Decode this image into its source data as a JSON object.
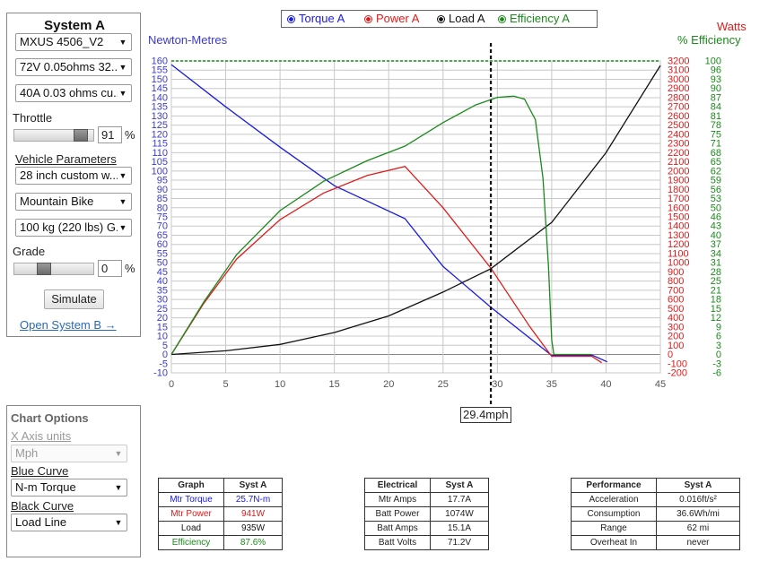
{
  "systemA": {
    "title": "System A",
    "motor": "MXUS 4506_V2",
    "battery": "72V 0.05ohms 32...",
    "controller": "40A 0.03 ohms cu...",
    "throttle_label": "Throttle",
    "throttle_value": "91",
    "throttle_unit": "%",
    "throttle_level": 0.91,
    "vehicle_label": "Vehicle Parameters",
    "wheel": "28 inch custom w...",
    "bike_type": "Mountain Bike",
    "weight": "100 kg (220 lbs) G...",
    "grade_label": "Grade",
    "grade_value": "0",
    "grade_unit": "%",
    "grade_level": 0.35,
    "simulate_label": "Simulate",
    "open_b_label": "Open System B →"
  },
  "chart_options": {
    "title": "Chart Options",
    "x_axis_label": "X Axis units",
    "x_axis_value": "Mph",
    "blue_label": "Blue Curve",
    "blue_value": "N-m Torque",
    "black_label": "Black Curve",
    "black_value": "Load Line"
  },
  "legend": [
    {
      "label": "Torque A",
      "color": "#1a1ae0"
    },
    {
      "label": "Power A",
      "color": "#e01a1a"
    },
    {
      "label": "Load A",
      "color": "#111111"
    },
    {
      "label": "Efficiency A",
      "color": "#1a8a1a"
    }
  ],
  "axes": {
    "left_title": "Newton-Metres",
    "right_title_watts": "Watts",
    "right_title_eff": "% Efficiency",
    "cursor_label": "29.4mph"
  },
  "chart_data": {
    "type": "line",
    "x_range": [
      0,
      45
    ],
    "x_ticks": [
      0,
      5,
      10,
      15,
      20,
      25,
      30,
      35,
      40,
      45
    ],
    "y_left_range": [
      -10,
      160
    ],
    "y_left_ticks": [
      -10,
      -5,
      0,
      5,
      10,
      15,
      20,
      25,
      30,
      35,
      40,
      45,
      50,
      55,
      60,
      65,
      70,
      75,
      80,
      85,
      90,
      95,
      100,
      105,
      110,
      115,
      120,
      125,
      130,
      135,
      140,
      145,
      150,
      155,
      160
    ],
    "y_watts_range": [
      -200,
      3200
    ],
    "y_watts_ticks": [
      -200,
      -100,
      0,
      100,
      200,
      300,
      400,
      500,
      600,
      700,
      800,
      900,
      1000,
      1100,
      1200,
      1300,
      1400,
      1500,
      1600,
      1700,
      1800,
      1900,
      2000,
      2100,
      2200,
      2300,
      2400,
      2500,
      2600,
      2700,
      2800,
      2900,
      3000,
      3100,
      3200
    ],
    "y_eff_ticks": [
      -6,
      -3,
      0,
      3,
      6,
      9,
      12,
      15,
      18,
      21,
      25,
      28,
      31,
      34,
      37,
      40,
      43,
      46,
      50,
      53,
      56,
      59,
      62,
      65,
      68,
      71,
      75,
      78,
      81,
      84,
      87,
      90,
      93,
      96,
      100
    ],
    "grid": true,
    "cursor_x": 29.4,
    "series": [
      {
        "name": "Torque A",
        "color": "#1a1ae0",
        "axis": "nm",
        "x": [
          0,
          5,
          10,
          15,
          21.5,
          25,
          29.4,
          35,
          38.8,
          40.1
        ],
        "y": [
          158,
          135,
          113,
          92,
          74,
          48,
          25.7,
          -0.5,
          -0.5,
          -4
        ]
      },
      {
        "name": "Power A",
        "color": "#e01a1a",
        "axis": "watts",
        "x": [
          0,
          3,
          6,
          10,
          14,
          18,
          21.5,
          25,
          29.4,
          33,
          35,
          38.7,
          39.6
        ],
        "y": [
          0,
          560,
          1040,
          1470,
          1760,
          1950,
          2050,
          1600,
          941,
          300,
          -20,
          -20,
          -90
        ]
      },
      {
        "name": "Load A",
        "color": "#111111",
        "axis": "watts",
        "x": [
          0,
          5,
          10,
          15,
          20,
          25,
          29.4,
          35,
          40,
          45
        ],
        "y": [
          0,
          40,
          110,
          240,
          420,
          680,
          935,
          1440,
          2200,
          3150
        ]
      },
      {
        "name": "Efficiency A",
        "color": "#1a8a1a",
        "axis": "eff",
        "x": [
          0,
          3,
          6,
          10,
          14,
          18,
          21.5,
          25,
          28,
          30,
          31.5,
          32.5,
          33.5,
          34.2,
          34.7,
          35,
          35.2,
          38.7
        ],
        "y": [
          0,
          18,
          34,
          49,
          59,
          66,
          71,
          79,
          85,
          87.6,
          88,
          87,
          80,
          60,
          30,
          5,
          0,
          0
        ]
      }
    ]
  },
  "tables": {
    "graph": {
      "headers": [
        "Graph",
        "Syst A"
      ],
      "rows": [
        {
          "label": "Mtr Torque",
          "value": "25.7N-m",
          "color": "#1a1ae0"
        },
        {
          "label": "Mtr Power",
          "value": "941W",
          "color": "#e01a1a"
        },
        {
          "label": "Load",
          "value": "935W",
          "color": "#111111"
        },
        {
          "label": "Efficiency",
          "value": "87.6%",
          "color": "#1a8a1a"
        }
      ]
    },
    "electrical": {
      "headers": [
        "Electrical",
        "Syst A"
      ],
      "rows": [
        {
          "label": "Mtr Amps",
          "value": "17.7A"
        },
        {
          "label": "Batt Power",
          "value": "1074W"
        },
        {
          "label": "Batt Amps",
          "value": "15.1A"
        },
        {
          "label": "Batt Volts",
          "value": "71.2V"
        }
      ]
    },
    "performance": {
      "headers": [
        "Performance",
        "Syst A"
      ],
      "rows": [
        {
          "label": "Acceleration",
          "value": "0.016ft/s²"
        },
        {
          "label": "Consumption",
          "value": "36.6Wh/mi"
        },
        {
          "label": "Range",
          "value": "62 mi"
        },
        {
          "label": "Overheat In",
          "value": "never"
        }
      ]
    }
  }
}
